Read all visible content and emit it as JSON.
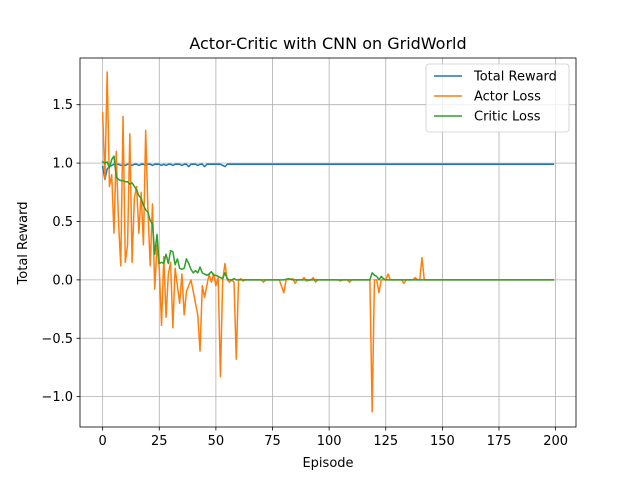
{
  "chart_data": {
    "type": "line",
    "title": "Actor-Critic with CNN on GridWorld",
    "xlabel": "Episode",
    "ylabel": "Total Reward",
    "xlim": [
      -10,
      209
    ],
    "ylim": [
      -1.26,
      1.9
    ],
    "xticks": [
      0,
      25,
      50,
      75,
      100,
      125,
      150,
      175,
      200
    ],
    "yticks": [
      -1.0,
      -0.5,
      0.0,
      0.5,
      1.0,
      1.5
    ],
    "ytick_labels": [
      "−1.0",
      "−0.5",
      "0.0",
      "0.5",
      "1.0",
      "1.5"
    ],
    "grid": true,
    "legend_position": "top-right",
    "series": [
      {
        "name": "Total Reward",
        "color": "#1f77b4",
        "points": [
          [
            0,
            0.97
          ],
          [
            1,
            0.86
          ],
          [
            2,
            0.95
          ],
          [
            3,
            0.97
          ],
          [
            4,
            0.98
          ],
          [
            5,
            0.99
          ],
          [
            6,
            0.99
          ],
          [
            7,
            0.99
          ],
          [
            8,
            0.98
          ],
          [
            9,
            0.99
          ],
          [
            10,
            0.98
          ],
          [
            11,
            0.99
          ],
          [
            12,
            0.99
          ],
          [
            13,
            0.98
          ],
          [
            14,
            0.99
          ],
          [
            15,
            0.99
          ],
          [
            16,
            0.98
          ],
          [
            17,
            0.99
          ],
          [
            18,
            0.99
          ],
          [
            19,
            0.98
          ],
          [
            20,
            0.99
          ],
          [
            21,
            0.99
          ],
          [
            22,
            0.98
          ],
          [
            23,
            0.99
          ],
          [
            24,
            0.99
          ],
          [
            25,
            0.99
          ],
          [
            26,
            0.98
          ],
          [
            27,
            0.99
          ],
          [
            28,
            0.98
          ],
          [
            29,
            0.99
          ],
          [
            30,
            0.99
          ],
          [
            31,
            0.98
          ],
          [
            32,
            0.99
          ],
          [
            33,
            0.99
          ],
          [
            34,
            0.99
          ],
          [
            35,
            0.98
          ],
          [
            36,
            0.99
          ],
          [
            37,
            0.99
          ],
          [
            38,
            0.97
          ],
          [
            39,
            0.99
          ],
          [
            40,
            0.99
          ],
          [
            41,
            0.99
          ],
          [
            42,
            0.98
          ],
          [
            43,
            0.99
          ],
          [
            44,
            0.99
          ],
          [
            45,
            0.97
          ],
          [
            46,
            0.99
          ],
          [
            47,
            0.99
          ],
          [
            48,
            0.99
          ],
          [
            49,
            0.99
          ],
          [
            50,
            0.99
          ],
          [
            51,
            0.99
          ],
          [
            52,
            0.99
          ],
          [
            53,
            0.98
          ],
          [
            54,
            0.97
          ],
          [
            55,
            0.99
          ],
          [
            56,
            0.99
          ],
          [
            58,
            0.99
          ],
          [
            60,
            0.99
          ],
          [
            199,
            0.99
          ]
        ]
      },
      {
        "name": "Actor Loss",
        "color": "#ff7f0e",
        "points": [
          [
            0,
            1.43
          ],
          [
            1,
            0.86
          ],
          [
            2,
            1.78
          ],
          [
            3,
            0.8
          ],
          [
            4,
            0.9
          ],
          [
            5,
            0.4
          ],
          [
            6,
            1.1
          ],
          [
            7,
            0.5
          ],
          [
            8,
            0.12
          ],
          [
            9,
            1.4
          ],
          [
            10,
            0.15
          ],
          [
            11,
            0.3
          ],
          [
            12,
            1.25
          ],
          [
            13,
            0.15
          ],
          [
            14,
            0.7
          ],
          [
            15,
            0.8
          ],
          [
            16,
            0.4
          ],
          [
            17,
            0.75
          ],
          [
            18,
            0.3
          ],
          [
            19,
            1.28
          ],
          [
            20,
            0.6
          ],
          [
            21,
            0.12
          ],
          [
            22,
            0.65
          ],
          [
            23,
            -0.08
          ],
          [
            24,
            0.3
          ],
          [
            25,
            0.1
          ],
          [
            26,
            -0.39
          ],
          [
            27,
            0.2
          ],
          [
            28,
            -0.32
          ],
          [
            29,
            0.05
          ],
          [
            30,
            0.15
          ],
          [
            31,
            -0.41
          ],
          [
            32,
            0.1
          ],
          [
            33,
            -0.05
          ],
          [
            34,
            -0.2
          ],
          [
            35,
            0.05
          ],
          [
            36,
            -0.3
          ],
          [
            37,
            -0.1
          ],
          [
            38,
            -0.05
          ],
          [
            39,
            0.0
          ],
          [
            40,
            -0.1
          ],
          [
            41,
            -0.2
          ],
          [
            42,
            -0.3
          ],
          [
            43,
            -0.61
          ],
          [
            44,
            -0.05
          ],
          [
            45,
            -0.15
          ],
          [
            46,
            -0.05
          ],
          [
            47,
            0.05
          ],
          [
            48,
            -0.02
          ],
          [
            49,
            0.05
          ],
          [
            50,
            -0.05
          ],
          [
            51,
            0.02
          ],
          [
            52,
            -0.83
          ],
          [
            53,
            0.0
          ],
          [
            54,
            0.14
          ],
          [
            55,
            0.0
          ],
          [
            56,
            -0.02
          ],
          [
            57,
            0.0
          ],
          [
            58,
            -0.02
          ],
          [
            59,
            -0.68
          ],
          [
            60,
            0.0
          ],
          [
            61,
            0.01
          ],
          [
            62,
            -0.01
          ],
          [
            63,
            0.0
          ],
          [
            70,
            0.0
          ],
          [
            71,
            -0.02
          ],
          [
            72,
            0.0
          ],
          [
            78,
            0.0
          ],
          [
            80,
            -0.11
          ],
          [
            81,
            0.0
          ],
          [
            84,
            0.01
          ],
          [
            85,
            -0.03
          ],
          [
            86,
            0.0
          ],
          [
            88,
            0.0
          ],
          [
            89,
            0.02
          ],
          [
            90,
            -0.01
          ],
          [
            92,
            0.0
          ],
          [
            93,
            0.02
          ],
          [
            94,
            -0.02
          ],
          [
            95,
            0.0
          ],
          [
            104,
            0.0
          ],
          [
            105,
            -0.01
          ],
          [
            106,
            0.0
          ],
          [
            108,
            0.0
          ],
          [
            109,
            -0.02
          ],
          [
            110,
            0.0
          ],
          [
            118,
            0.0
          ],
          [
            119,
            -1.13
          ],
          [
            120,
            0.0
          ],
          [
            121,
            0.0
          ],
          [
            122,
            -0.11
          ],
          [
            123,
            0.0
          ],
          [
            125,
            0.0
          ],
          [
            126,
            0.05
          ],
          [
            127,
            0.0
          ],
          [
            132,
            0.0
          ],
          [
            133,
            -0.03
          ],
          [
            134,
            0.0
          ],
          [
            137,
            0.0
          ],
          [
            138,
            0.02
          ],
          [
            139,
            0.0
          ],
          [
            140,
            0.0
          ],
          [
            141,
            0.19
          ],
          [
            142,
            0.0
          ],
          [
            143,
            0.0
          ],
          [
            199,
            0.0
          ]
        ]
      },
      {
        "name": "Critic Loss",
        "color": "#2ca02c",
        "points": [
          [
            0,
            1.01
          ],
          [
            1,
            1.0
          ],
          [
            2,
            1.01
          ],
          [
            3,
            0.96
          ],
          [
            4,
            1.03
          ],
          [
            5,
            1.06
          ],
          [
            6,
            0.88
          ],
          [
            7,
            0.86
          ],
          [
            8,
            0.85
          ],
          [
            9,
            0.85
          ],
          [
            10,
            0.84
          ],
          [
            11,
            0.84
          ],
          [
            12,
            0.82
          ],
          [
            13,
            0.83
          ],
          [
            14,
            0.8
          ],
          [
            15,
            0.77
          ],
          [
            16,
            0.72
          ],
          [
            17,
            0.7
          ],
          [
            18,
            0.64
          ],
          [
            19,
            0.6
          ],
          [
            20,
            0.58
          ],
          [
            21,
            0.51
          ],
          [
            22,
            0.48
          ],
          [
            23,
            0.22
          ],
          [
            24,
            0.39
          ],
          [
            25,
            0.14
          ],
          [
            26,
            0.15
          ],
          [
            27,
            0.14
          ],
          [
            28,
            0.22
          ],
          [
            29,
            0.14
          ],
          [
            30,
            0.25
          ],
          [
            31,
            0.24
          ],
          [
            32,
            0.13
          ],
          [
            33,
            0.18
          ],
          [
            34,
            0.1
          ],
          [
            35,
            0.09
          ],
          [
            36,
            0.1
          ],
          [
            37,
            0.18
          ],
          [
            38,
            0.14
          ],
          [
            39,
            0.09
          ],
          [
            40,
            0.06
          ],
          [
            41,
            0.08
          ],
          [
            42,
            0.06
          ],
          [
            43,
            0.11
          ],
          [
            44,
            0.06
          ],
          [
            45,
            0.05
          ],
          [
            46,
            0.04
          ],
          [
            47,
            0.05
          ],
          [
            48,
            0.07
          ],
          [
            49,
            0.04
          ],
          [
            50,
            0.04
          ],
          [
            51,
            0.03
          ],
          [
            52,
            0.02
          ],
          [
            53,
            0.01
          ],
          [
            54,
            0.06
          ],
          [
            55,
            0.01
          ],
          [
            56,
            0.0
          ],
          [
            57,
            0.0
          ],
          [
            58,
            0.01
          ],
          [
            59,
            0.0
          ],
          [
            60,
            0.0
          ],
          [
            80,
            0.0
          ],
          [
            82,
            0.01
          ],
          [
            84,
            0.0
          ],
          [
            118,
            0.0
          ],
          [
            119,
            0.06
          ],
          [
            120,
            0.04
          ],
          [
            121,
            0.03
          ],
          [
            122,
            0.0
          ],
          [
            123,
            0.03
          ],
          [
            124,
            0.01
          ],
          [
            125,
            0.0
          ],
          [
            199,
            0.0
          ]
        ]
      }
    ]
  }
}
